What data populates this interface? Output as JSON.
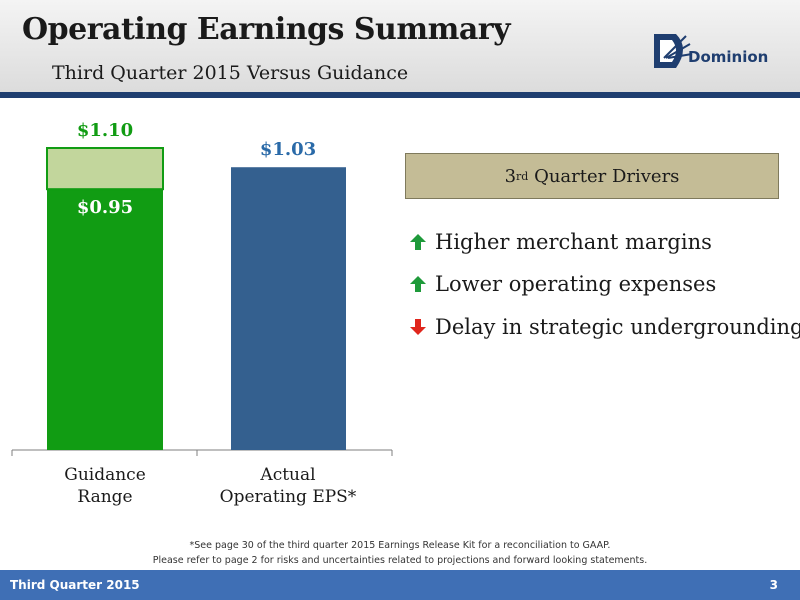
{
  "header": {
    "title": "Operating Earnings Summary",
    "subtitle": "Third Quarter 2015 Versus Guidance",
    "logo_text": "Dominion"
  },
  "chart_data": {
    "type": "bar",
    "categories": [
      "Guidance Range",
      "Actual Operating EPS*"
    ],
    "category_lines": [
      [
        "Guidance",
        "Range"
      ],
      [
        "Actual",
        "Operating EPS*"
      ]
    ],
    "guidance_low": 0.95,
    "guidance_high": 1.1,
    "actual": 1.03,
    "data_labels": {
      "guidance_low": "$0.95",
      "guidance_high": "$1.10",
      "actual": "$1.03"
    },
    "ylim": [
      0,
      1.1
    ],
    "grid": false,
    "colors": {
      "guidance_low": "#119c13",
      "guidance_range": "#c2d69c",
      "actual": "#34608f",
      "label_green": "#119c13",
      "label_blue": "#2a6aa8"
    }
  },
  "drivers": {
    "heading_main": "3",
    "heading_sup": "rd",
    "heading_rest": " Quarter Drivers",
    "items": [
      {
        "text": "Higher merchant margins",
        "direction": "up",
        "icon": "arrow-up-icon"
      },
      {
        "text": "Lower operating expenses",
        "direction": "up",
        "icon": "arrow-up-icon"
      },
      {
        "text": "Delay in strategic undergrounding",
        "direction": "down",
        "icon": "arrow-down-icon"
      }
    ],
    "colors": {
      "up": "#1e9a3a",
      "down": "#e0261c"
    }
  },
  "footnotes": {
    "line1": "*See page 30 of the third quarter 2015 Earnings Release Kit for a reconciliation to GAAP.",
    "line2": "Please refer to page 2 for risks and uncertainties related to projections and forward looking statements."
  },
  "footer": {
    "left": "Third Quarter 2015",
    "page": "3"
  }
}
